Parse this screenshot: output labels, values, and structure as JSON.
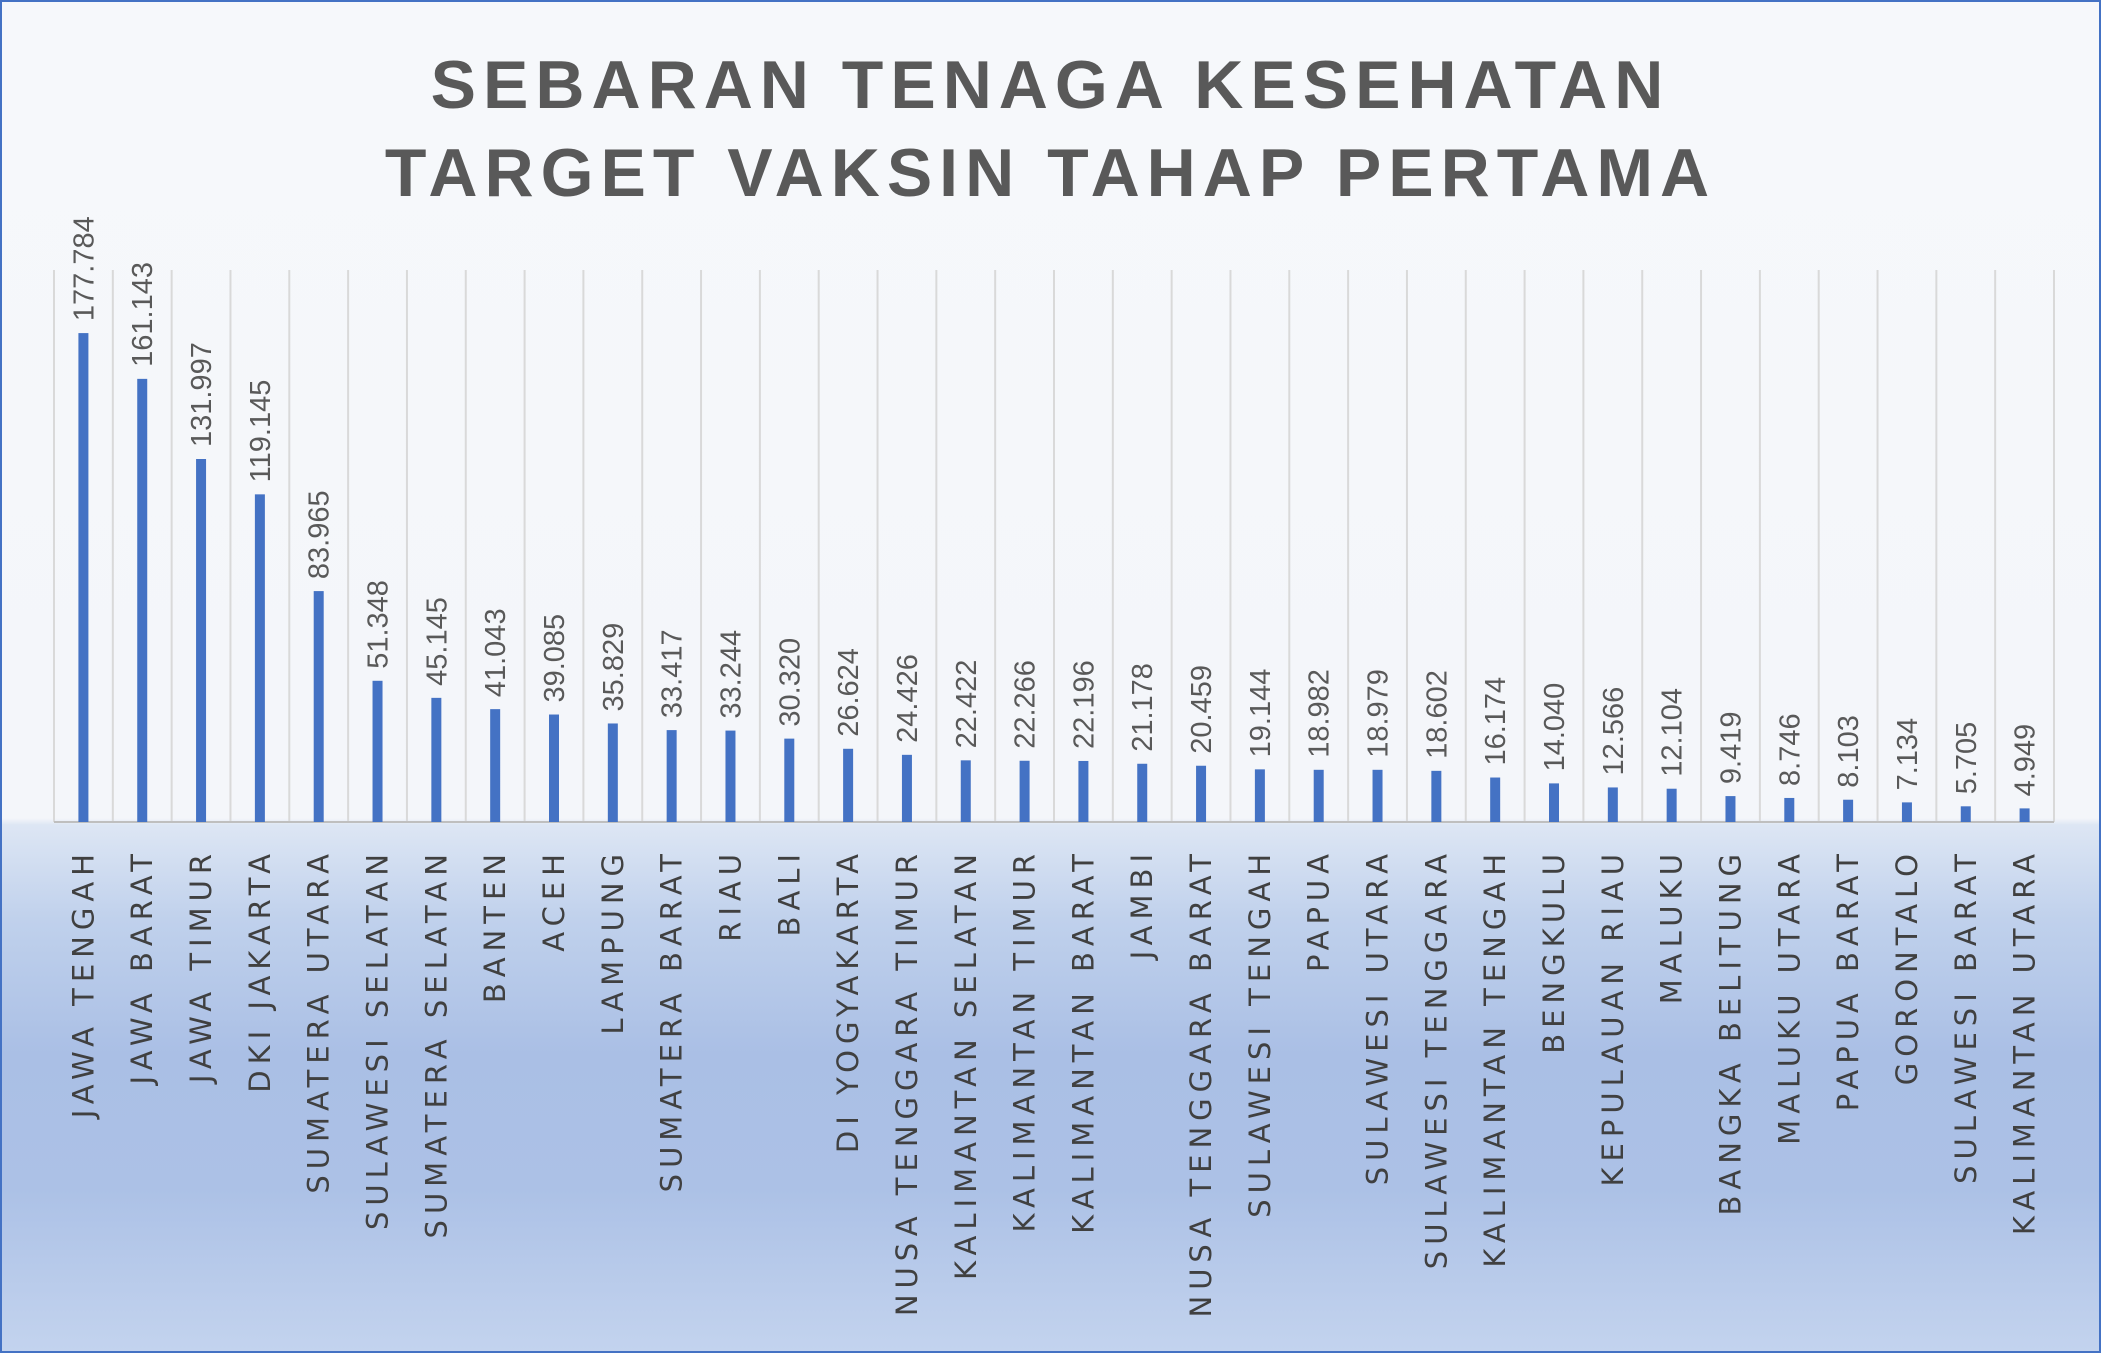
{
  "chart_data": {
    "type": "bar",
    "title": [
      "SEBARAN TENAGA KESEHATAN",
      "TARGET VAKSIN TAHAP PERTAMA"
    ],
    "categories": [
      "JAWA TENGAH",
      "JAWA BARAT",
      "JAWA TIMUR",
      "DKI JAKARTA",
      "SUMATERA UTARA",
      "SULAWESI SELATAN",
      "SUMATERA SELATAN",
      "BANTEN",
      "ACEH",
      "LAMPUNG",
      "SUMATERA BARAT",
      "RIAU",
      "BALI",
      "DI YOGYAKARTA",
      "NUSA TENGGARA TIMUR",
      "KALIMANTAN SELATAN",
      "KALIMANTAN TIMUR",
      "KALIMANTAN BARAT",
      "JAMBI",
      "NUSA TENGGARA BARAT",
      "SULAWESI TENGAH",
      "PAPUA",
      "SULAWESI UTARA",
      "SULAWESI TENGGARA",
      "KALIMANTAN TENGAH",
      "BENGKULU",
      "KEPULAUAN RIAU",
      "MALUKU",
      "BANGKA BELITUNG",
      "MALUKU UTARA",
      "PAPUA BARAT",
      "GORONTALO",
      "SULAWESI BARAT",
      "KALIMANTAN UTARA"
    ],
    "values": [
      177784,
      161143,
      131997,
      119145,
      83965,
      51348,
      45145,
      41043,
      39085,
      35829,
      33417,
      33244,
      30320,
      26624,
      24426,
      22422,
      22266,
      22196,
      21178,
      20459,
      19144,
      18982,
      18979,
      18602,
      16174,
      14040,
      12566,
      12104,
      9419,
      8746,
      8103,
      7134,
      5705,
      4949
    ],
    "data_labels": [
      "177.784",
      "161.143",
      "131.997",
      "119.145",
      "83.965",
      "51.348",
      "45.145",
      "41.043",
      "39.085",
      "35.829",
      "33.417",
      "33.244",
      "30.320",
      "26.624",
      "24.426",
      "22.422",
      "22.266",
      "22.196",
      "21.178",
      "20.459",
      "19.144",
      "18.982",
      "18.979",
      "18.602",
      "16.174",
      "14.040",
      "12.566",
      "12.104",
      "9.419",
      "8.746",
      "8.103",
      "7.134",
      "5.705",
      "4.949"
    ],
    "xlabel": "",
    "ylabel": "",
    "ylim": [
      0,
      200000
    ],
    "grid": "vertical category separators",
    "legend": "none",
    "colors": {
      "bar": "#4472c4",
      "grid": "#d9d9d9",
      "axis": "#bfbfbf",
      "border": "#4472c4"
    }
  }
}
